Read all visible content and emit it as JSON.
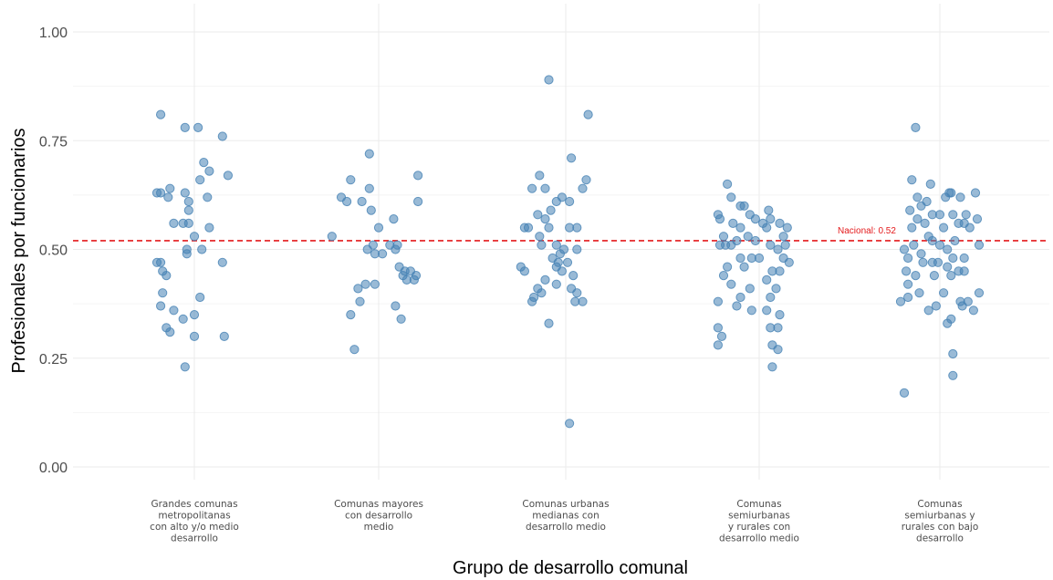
{
  "chart_data": {
    "type": "scatter",
    "xlabel": "Grupo de desarrollo comunal",
    "ylabel": "Profesionales por funcionarios",
    "ylim": [
      -0.02,
      1.02
    ],
    "yticks": [
      "0.00",
      "0.25",
      "0.50",
      "0.75",
      "1.00"
    ],
    "grid": true,
    "categories": [
      [
        "Grandes comunas",
        "metropolitanas",
        "con alto y/o medio",
        "desarrollo"
      ],
      [
        "Comunas mayores",
        "con desarrollo",
        "medio"
      ],
      [
        "Comunas urbanas",
        "medianas con",
        "desarrollo medio"
      ],
      [
        "Comunas",
        "semiurbanas",
        "y rurales con",
        "desarrollo medio"
      ],
      [
        "Comunas",
        "semiurbanas y",
        "rurales con bajo",
        "desarrollo"
      ]
    ],
    "reference_line": {
      "value": 0.52,
      "label": "Nacional: 0.52",
      "color": "#e41a1c"
    },
    "point_color": "#4682b4",
    "points": [
      [
        [
          -0.18,
          0.81
        ],
        [
          -0.05,
          0.78
        ],
        [
          0.02,
          0.78
        ],
        [
          0.15,
          0.76
        ],
        [
          0.18,
          0.67
        ],
        [
          0.05,
          0.7
        ],
        [
          0.08,
          0.68
        ],
        [
          0.03,
          0.66
        ],
        [
          -0.2,
          0.63
        ],
        [
          -0.18,
          0.63
        ],
        [
          -0.13,
          0.64
        ],
        [
          -0.14,
          0.62
        ],
        [
          -0.05,
          0.63
        ],
        [
          -0.03,
          0.61
        ],
        [
          0.07,
          0.62
        ],
        [
          -0.03,
          0.59
        ],
        [
          -0.11,
          0.56
        ],
        [
          -0.06,
          0.56
        ],
        [
          -0.03,
          0.56
        ],
        [
          0.08,
          0.55
        ],
        [
          -0.0,
          0.53
        ],
        [
          -0.04,
          0.5
        ],
        [
          0.04,
          0.5
        ],
        [
          -0.04,
          0.49
        ],
        [
          -0.2,
          0.47
        ],
        [
          -0.18,
          0.47
        ],
        [
          -0.17,
          0.45
        ],
        [
          -0.15,
          0.44
        ],
        [
          0.15,
          0.47
        ],
        [
          -0.17,
          0.4
        ],
        [
          0.03,
          0.39
        ],
        [
          -0.18,
          0.37
        ],
        [
          -0.11,
          0.36
        ],
        [
          -0.06,
          0.34
        ],
        [
          0.0,
          0.35
        ],
        [
          -0.15,
          0.32
        ],
        [
          -0.13,
          0.31
        ],
        [
          0.0,
          0.3
        ],
        [
          0.16,
          0.3
        ],
        [
          -0.05,
          0.23
        ]
      ],
      [
        [
          -0.05,
          0.72
        ],
        [
          -0.15,
          0.66
        ],
        [
          -0.05,
          0.64
        ],
        [
          0.21,
          0.67
        ],
        [
          -0.2,
          0.62
        ],
        [
          -0.17,
          0.61
        ],
        [
          -0.09,
          0.61
        ],
        [
          0.21,
          0.61
        ],
        [
          -0.04,
          0.59
        ],
        [
          0.08,
          0.57
        ],
        [
          -0.25,
          0.53
        ],
        [
          0.0,
          0.55
        ],
        [
          -0.03,
          0.51
        ],
        [
          0.06,
          0.51
        ],
        [
          0.09,
          0.5
        ],
        [
          0.1,
          0.51
        ],
        [
          -0.06,
          0.5
        ],
        [
          -0.02,
          0.49
        ],
        [
          0.02,
          0.49
        ],
        [
          0.11,
          0.46
        ],
        [
          0.14,
          0.45
        ],
        [
          0.17,
          0.45
        ],
        [
          0.2,
          0.44
        ],
        [
          0.13,
          0.44
        ],
        [
          0.15,
          0.43
        ],
        [
          0.19,
          0.43
        ],
        [
          -0.07,
          0.42
        ],
        [
          -0.02,
          0.42
        ],
        [
          -0.11,
          0.41
        ],
        [
          -0.1,
          0.38
        ],
        [
          0.09,
          0.37
        ],
        [
          -0.15,
          0.35
        ],
        [
          0.12,
          0.34
        ],
        [
          -0.13,
          0.27
        ]
      ],
      [
        [
          -0.09,
          0.89
        ],
        [
          0.12,
          0.81
        ],
        [
          0.03,
          0.71
        ],
        [
          -0.14,
          0.67
        ],
        [
          0.11,
          0.66
        ],
        [
          -0.11,
          0.64
        ],
        [
          -0.18,
          0.64
        ],
        [
          0.09,
          0.64
        ],
        [
          -0.05,
          0.61
        ],
        [
          -0.02,
          0.62
        ],
        [
          0.02,
          0.61
        ],
        [
          -0.15,
          0.58
        ],
        [
          -0.08,
          0.59
        ],
        [
          -0.11,
          0.57
        ],
        [
          -0.09,
          0.55
        ],
        [
          -0.22,
          0.55
        ],
        [
          -0.2,
          0.55
        ],
        [
          -0.14,
          0.53
        ],
        [
          0.02,
          0.55
        ],
        [
          0.06,
          0.55
        ],
        [
          -0.05,
          0.51
        ],
        [
          -0.01,
          0.5
        ],
        [
          0.06,
          0.5
        ],
        [
          -0.13,
          0.51
        ],
        [
          -0.03,
          0.49
        ],
        [
          -0.07,
          0.48
        ],
        [
          -0.04,
          0.47
        ],
        [
          0.01,
          0.47
        ],
        [
          -0.24,
          0.46
        ],
        [
          -0.22,
          0.45
        ],
        [
          -0.05,
          0.46
        ],
        [
          -0.02,
          0.45
        ],
        [
          0.04,
          0.44
        ],
        [
          -0.15,
          0.41
        ],
        [
          -0.11,
          0.43
        ],
        [
          -0.05,
          0.42
        ],
        [
          0.03,
          0.41
        ],
        [
          0.06,
          0.4
        ],
        [
          -0.17,
          0.39
        ],
        [
          -0.13,
          0.4
        ],
        [
          0.05,
          0.38
        ],
        [
          0.09,
          0.38
        ],
        [
          -0.18,
          0.38
        ],
        [
          -0.09,
          0.33
        ],
        [
          0.02,
          0.1
        ]
      ],
      [
        [
          -0.17,
          0.65
        ],
        [
          -0.15,
          0.62
        ],
        [
          -0.1,
          0.6
        ],
        [
          -0.08,
          0.6
        ],
        [
          -0.05,
          0.58
        ],
        [
          0.05,
          0.59
        ],
        [
          -0.22,
          0.58
        ],
        [
          -0.21,
          0.57
        ],
        [
          -0.14,
          0.56
        ],
        [
          -0.02,
          0.57
        ],
        [
          0.02,
          0.56
        ],
        [
          0.06,
          0.57
        ],
        [
          0.11,
          0.56
        ],
        [
          0.04,
          0.55
        ],
        [
          -0.1,
          0.55
        ],
        [
          0.15,
          0.55
        ],
        [
          -0.19,
          0.53
        ],
        [
          -0.12,
          0.52
        ],
        [
          -0.06,
          0.53
        ],
        [
          -0.02,
          0.52
        ],
        [
          0.13,
          0.53
        ],
        [
          -0.18,
          0.51
        ],
        [
          -0.21,
          0.51
        ],
        [
          -0.15,
          0.51
        ],
        [
          0.06,
          0.51
        ],
        [
          0.1,
          0.5
        ],
        [
          0.14,
          0.51
        ],
        [
          -0.1,
          0.48
        ],
        [
          -0.04,
          0.48
        ],
        [
          0.0,
          0.48
        ],
        [
          0.13,
          0.48
        ],
        [
          0.16,
          0.47
        ],
        [
          -0.17,
          0.46
        ],
        [
          -0.08,
          0.46
        ],
        [
          0.07,
          0.45
        ],
        [
          0.11,
          0.45
        ],
        [
          -0.19,
          0.44
        ],
        [
          0.04,
          0.43
        ],
        [
          -0.15,
          0.42
        ],
        [
          -0.05,
          0.41
        ],
        [
          0.09,
          0.41
        ],
        [
          -0.1,
          0.39
        ],
        [
          0.06,
          0.39
        ],
        [
          -0.22,
          0.38
        ],
        [
          -0.12,
          0.37
        ],
        [
          -0.04,
          0.36
        ],
        [
          0.04,
          0.36
        ],
        [
          0.11,
          0.35
        ],
        [
          0.06,
          0.32
        ],
        [
          0.1,
          0.32
        ],
        [
          -0.22,
          0.32
        ],
        [
          -0.2,
          0.3
        ],
        [
          0.07,
          0.28
        ],
        [
          0.1,
          0.27
        ],
        [
          -0.22,
          0.28
        ],
        [
          0.07,
          0.23
        ]
      ],
      [
        [
          -0.13,
          0.78
        ],
        [
          -0.15,
          0.66
        ],
        [
          -0.12,
          0.62
        ],
        [
          -0.05,
          0.65
        ],
        [
          0.05,
          0.63
        ],
        [
          0.11,
          0.62
        ],
        [
          0.19,
          0.63
        ],
        [
          -0.07,
          0.61
        ],
        [
          -0.1,
          0.6
        ],
        [
          0.03,
          0.62
        ],
        [
          0.06,
          0.63
        ],
        [
          -0.16,
          0.59
        ],
        [
          -0.04,
          0.58
        ],
        [
          0.0,
          0.58
        ],
        [
          0.07,
          0.58
        ],
        [
          0.14,
          0.58
        ],
        [
          0.13,
          0.56
        ],
        [
          -0.12,
          0.57
        ],
        [
          -0.08,
          0.56
        ],
        [
          0.02,
          0.55
        ],
        [
          -0.15,
          0.55
        ],
        [
          0.16,
          0.55
        ],
        [
          0.1,
          0.56
        ],
        [
          0.2,
          0.57
        ],
        [
          -0.06,
          0.53
        ],
        [
          -0.04,
          0.52
        ],
        [
          0.0,
          0.51
        ],
        [
          0.08,
          0.52
        ],
        [
          -0.14,
          0.51
        ],
        [
          0.04,
          0.5
        ],
        [
          -0.19,
          0.5
        ],
        [
          0.21,
          0.51
        ],
        [
          -0.1,
          0.49
        ],
        [
          0.07,
          0.48
        ],
        [
          -0.04,
          0.47
        ],
        [
          -0.01,
          0.47
        ],
        [
          -0.17,
          0.48
        ],
        [
          0.13,
          0.48
        ],
        [
          -0.09,
          0.47
        ],
        [
          0.04,
          0.46
        ],
        [
          -0.18,
          0.45
        ],
        [
          0.1,
          0.45
        ],
        [
          0.13,
          0.45
        ],
        [
          -0.13,
          0.44
        ],
        [
          -0.03,
          0.44
        ],
        [
          0.06,
          0.44
        ],
        [
          -0.17,
          0.42
        ],
        [
          0.21,
          0.4
        ],
        [
          -0.11,
          0.4
        ],
        [
          0.02,
          0.4
        ],
        [
          0.15,
          0.38
        ],
        [
          -0.17,
          0.39
        ],
        [
          0.11,
          0.38
        ],
        [
          -0.21,
          0.38
        ],
        [
          -0.02,
          0.37
        ],
        [
          0.12,
          0.37
        ],
        [
          -0.06,
          0.36
        ],
        [
          0.18,
          0.36
        ],
        [
          0.04,
          0.33
        ],
        [
          0.06,
          0.34
        ],
        [
          0.07,
          0.26
        ],
        [
          -0.19,
          0.17
        ],
        [
          0.07,
          0.21
        ]
      ]
    ]
  }
}
